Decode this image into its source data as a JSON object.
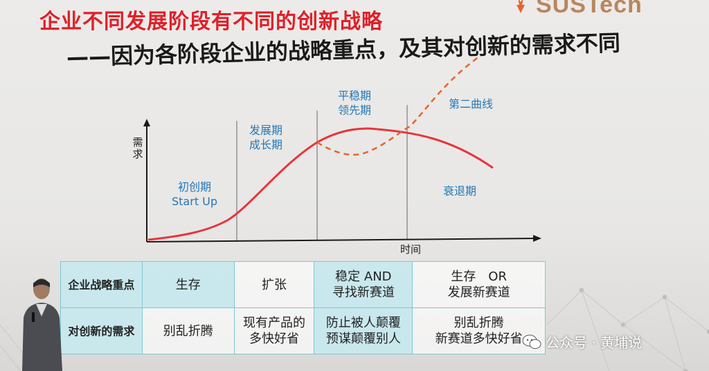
{
  "logo": {
    "text": "SUSTech"
  },
  "title": {
    "main": "企业不同发展阶段有不同的创新战略",
    "sub": "——因为各阶段企业的战略重点，及其对创新的需求不同"
  },
  "chart": {
    "y_axis": "需求",
    "x_axis": "时间",
    "stages": {
      "startup": [
        "初创期",
        "Start Up"
      ],
      "growth": [
        "发展期",
        "成长期"
      ],
      "mature": [
        "平稳期",
        "领先期"
      ],
      "second_curve": "第二曲线",
      "decline": "衰退期"
    },
    "colors": {
      "curve": "#e8343c",
      "dashed": "#e8632a",
      "label": "#2478b8",
      "grid": "#7fc7d2"
    }
  },
  "table": {
    "rows": [
      {
        "header": "企业战略重点",
        "cells": [
          [
            "生存"
          ],
          [
            "扩张"
          ],
          [
            "稳定 AND",
            "寻找新赛道"
          ],
          [
            "生存　OR",
            "发展新赛道"
          ]
        ]
      },
      {
        "header": "对创新的需求",
        "cells": [
          [
            "别乱折腾"
          ],
          [
            "现有产品的",
            "多快好省"
          ],
          [
            "防止被人颠覆",
            "预谋颠覆别人"
          ],
          [
            "别乱折腾",
            "新赛道多快好省"
          ]
        ]
      }
    ]
  },
  "watermark": {
    "text": "公众号 · 黄埔说",
    "icon": "wechat-icon"
  }
}
